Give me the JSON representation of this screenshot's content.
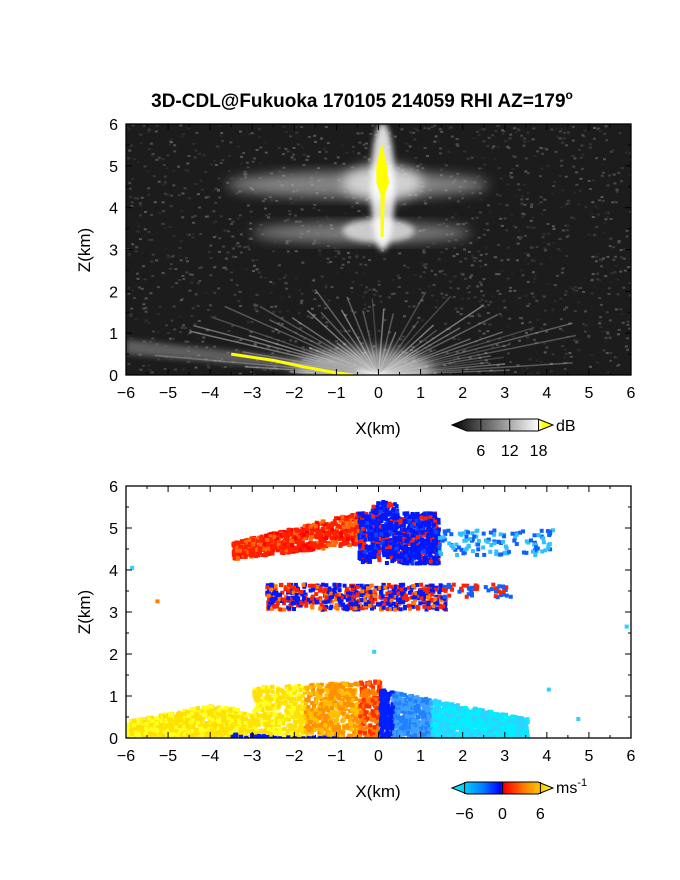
{
  "chart_data": {
    "title": "3D-CDL@Fukuoka 170105 214059 RHI AZ=179",
    "title_superscript": "o",
    "panels": [
      {
        "type": "heatmap",
        "quantity": "backscatter intensity",
        "colormap": "grayscale (black to white), yellow above top",
        "xlabel": "X(km)",
        "ylabel": "Z(km)",
        "xlim": [
          -6,
          6
        ],
        "ylim": [
          0,
          6
        ],
        "xticks": [
          "-6",
          "-5",
          "-4",
          "-3",
          "-2",
          "-1",
          "0",
          "1",
          "2",
          "3",
          "4",
          "5",
          "6"
        ],
        "yticks": [
          "0",
          "1",
          "2",
          "3",
          "4",
          "5",
          "6"
        ],
        "colorbar": {
          "unit": "dB",
          "range": [
            0,
            21
          ],
          "ticks": [
            "6",
            "12",
            "18"
          ]
        },
        "features": [
          {
            "name": "upper cloud layer",
            "x_range": [
              -3.6,
              2.6
            ],
            "z_range": [
              4.3,
              4.9
            ]
          },
          {
            "name": "lower cloud layer",
            "x_range": [
              -3.0,
              2.2
            ],
            "z_range": [
              3.2,
              3.6
            ]
          },
          {
            "name": "vertical column",
            "x": 0.1,
            "z_range": [
              3.1,
              5.7
            ]
          },
          {
            "name": "near-surface fan",
            "x_range": [
              -6,
              1.8
            ],
            "z_range": [
              0,
              1.3
            ]
          }
        ]
      },
      {
        "type": "heatmap",
        "quantity": "Doppler velocity",
        "colormap": "cyan-blue-red-orange-yellow diverging",
        "xlabel": "X(km)",
        "ylabel": "Z(km)",
        "xlim": [
          -6,
          6
        ],
        "ylim": [
          0,
          6
        ],
        "xticks": [
          "-6",
          "-5",
          "-4",
          "-3",
          "-2",
          "-1",
          "0",
          "1",
          "2",
          "3",
          "4",
          "5",
          "6"
        ],
        "yticks": [
          "0",
          "1",
          "2",
          "3",
          "4",
          "5",
          "6"
        ],
        "colorbar": {
          "unit": "ms",
          "unit_superscript": "-1",
          "range": [
            -8,
            8
          ],
          "ticks": [
            "-6",
            "0",
            "6"
          ]
        },
        "features": [
          {
            "name": "upper layer red",
            "x_range": [
              -3.5,
              -0.4
            ],
            "z_range": [
              4.3,
              5.3
            ],
            "velocity": 1
          },
          {
            "name": "upper layer blue",
            "x_range": [
              -0.4,
              1.4
            ],
            "z_range": [
              4.2,
              5.7
            ],
            "velocity": -1.5
          },
          {
            "name": "lower layer mixed",
            "x_range": [
              -2.7,
              1.9
            ],
            "z_range": [
              3.1,
              3.7
            ],
            "velocity": 0
          },
          {
            "name": "near-surface positive",
            "x_range": [
              -6,
              0
            ],
            "z_range": [
              0,
              1.4
            ],
            "velocity": 4
          },
          {
            "name": "near-surface negative",
            "x_range": [
              0,
              3.5
            ],
            "z_range": [
              0,
              1.2
            ],
            "velocity": -4
          }
        ]
      }
    ]
  }
}
